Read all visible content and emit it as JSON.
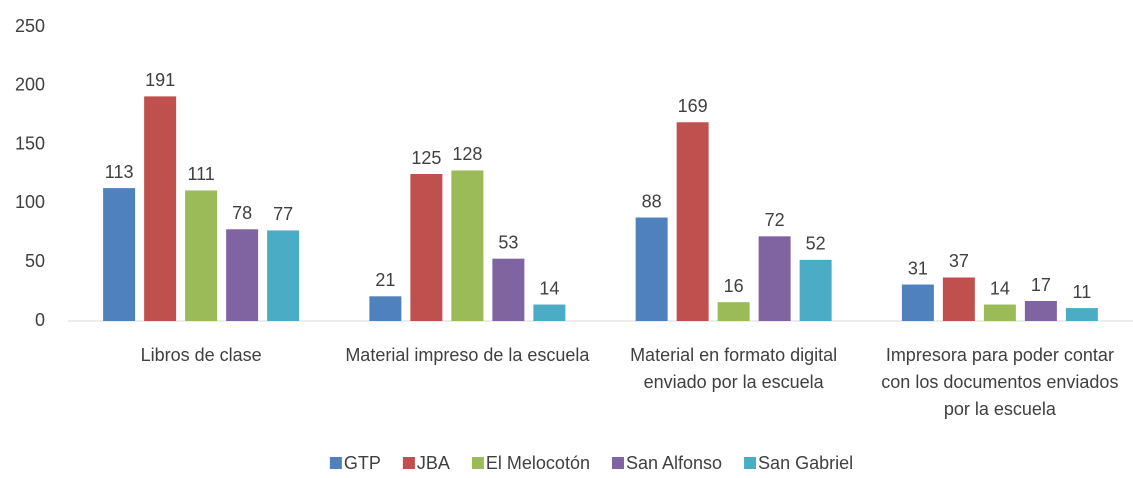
{
  "chart_data": {
    "type": "bar",
    "categories": [
      "Libros de clase",
      "Material impreso de la escuela",
      "Material en formato digital enviado por la escuela",
      "Impresora para poder contar con los documentos enviados por la escuela"
    ],
    "series": [
      {
        "name": "GTP",
        "color": "#4f81bd",
        "values": [
          113,
          21,
          88,
          31
        ]
      },
      {
        "name": "JBA",
        "color": "#c0504d",
        "values": [
          191,
          125,
          169,
          37
        ]
      },
      {
        "name": "El Melocotón",
        "color": "#9bbb59",
        "values": [
          111,
          128,
          16,
          14
        ]
      },
      {
        "name": "San Alfonso",
        "color": "#8064a2",
        "values": [
          78,
          53,
          72,
          17
        ]
      },
      {
        "name": "San Gabriel",
        "color": "#4bacc6",
        "values": [
          77,
          14,
          52,
          11
        ]
      }
    ],
    "ylim": [
      0,
      250
    ],
    "yticks": [
      0,
      50,
      100,
      150,
      200,
      250
    ],
    "grid": false,
    "legend": "bottom"
  }
}
